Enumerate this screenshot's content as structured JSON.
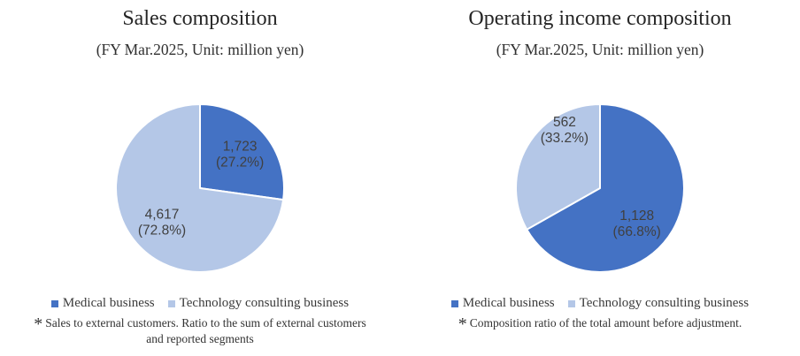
{
  "chart_data": [
    {
      "type": "pie",
      "title": "Sales composition",
      "subtitle": "(FY Mar.2025, Unit: million yen)",
      "unit": "million yen",
      "start_angle_deg": 0,
      "direction": "clockwise",
      "legend_position": "bottom",
      "slices": [
        {
          "label": "Medical business",
          "value": 1723,
          "value_display": "1,723",
          "pct": 27.2,
          "pct_display": "(27.2%)",
          "color": "#4472C4"
        },
        {
          "label": "Technology consulting business",
          "value": 4617,
          "value_display": "4,617",
          "pct": 72.8,
          "pct_display": "(72.8%)",
          "color": "#B4C7E7"
        }
      ],
      "footnote_marker": "*",
      "footnote": "Sales to external customers. Ratio to the sum of external customers and reported segments"
    },
    {
      "type": "pie",
      "title": "Operating income composition",
      "subtitle": "(FY Mar.2025, Unit: million yen)",
      "unit": "million yen",
      "start_angle_deg": 0,
      "direction": "clockwise",
      "legend_position": "bottom",
      "slices": [
        {
          "label": "Medical business",
          "value": 1128,
          "value_display": "1,128",
          "pct": 66.8,
          "pct_display": "(66.8%)",
          "color": "#4472C4"
        },
        {
          "label": "Technology consulting business",
          "value": 562,
          "value_display": "562",
          "pct": 33.2,
          "pct_display": "(33.2%)",
          "color": "#B4C7E7"
        }
      ],
      "footnote_marker": "*",
      "footnote": "Composition ratio of the total amount before adjustment."
    }
  ]
}
